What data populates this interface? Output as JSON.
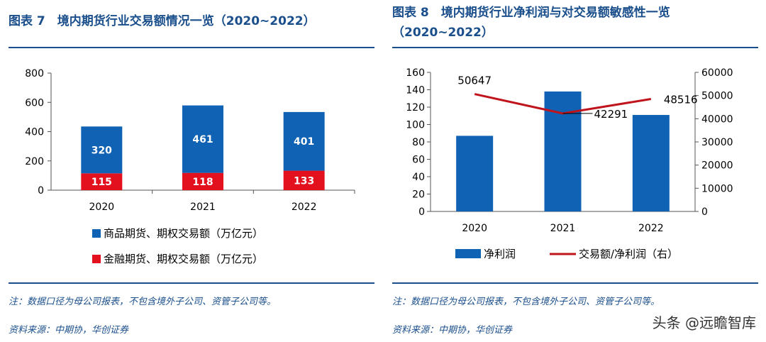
{
  "left": {
    "title": "图表 7　境内期货行业交易额情况一览（2020~2022）",
    "note": "注：数据口径为母公司报表，不包含境外子公司、资管子公司等。",
    "source": "资料来源：中期协，华创证券"
  },
  "right": {
    "title_line1": "图表 8　境内期货行业净利润与对交易额敏感性一览",
    "title_line2": "（2020~2022）",
    "note": "注：数据口径为母公司报表，不包含境外子公司、资管子公司等。",
    "source": "资料来源：中期协，华创证券"
  },
  "watermark": "头条 @远瞻智库",
  "colors": {
    "blue": "#0f62b4",
    "red": "#e3101e",
    "line": "#c0141c",
    "title": "#1a4f8c"
  },
  "chart_data": [
    {
      "type": "bar",
      "stacked": true,
      "categories": [
        "2020",
        "2021",
        "2022"
      ],
      "series": [
        {
          "name": "金融期货、期权交易额（万亿元）",
          "values": [
            115,
            118,
            133
          ]
        },
        {
          "name": "商品期货、期权交易额（万亿元）",
          "values": [
            320,
            461,
            401
          ]
        }
      ],
      "ylim": [
        0,
        800
      ],
      "yticks": [
        "0",
        "200",
        "400",
        "600",
        "800"
      ],
      "legend": "bottom"
    },
    {
      "type": "bar+line",
      "categories": [
        "2020",
        "2021",
        "2022"
      ],
      "series": [
        {
          "name": "净利润",
          "values": [
            87,
            138,
            111
          ],
          "axis": "left"
        },
        {
          "name": "交易额/净利润（右）",
          "values": [
            50647,
            42291,
            48516
          ],
          "axis": "right"
        }
      ],
      "ylim_left": [
        0,
        160
      ],
      "yticks_left": [
        "0",
        "20",
        "40",
        "60",
        "80",
        "100",
        "120",
        "140",
        "160"
      ],
      "ylim_right": [
        0,
        60000
      ],
      "yticks_right": [
        "0",
        "10000",
        "20000",
        "30000",
        "40000",
        "50000",
        "60000"
      ],
      "data_labels": [
        "50647",
        "42291",
        "48516"
      ],
      "legend": "bottom"
    }
  ]
}
